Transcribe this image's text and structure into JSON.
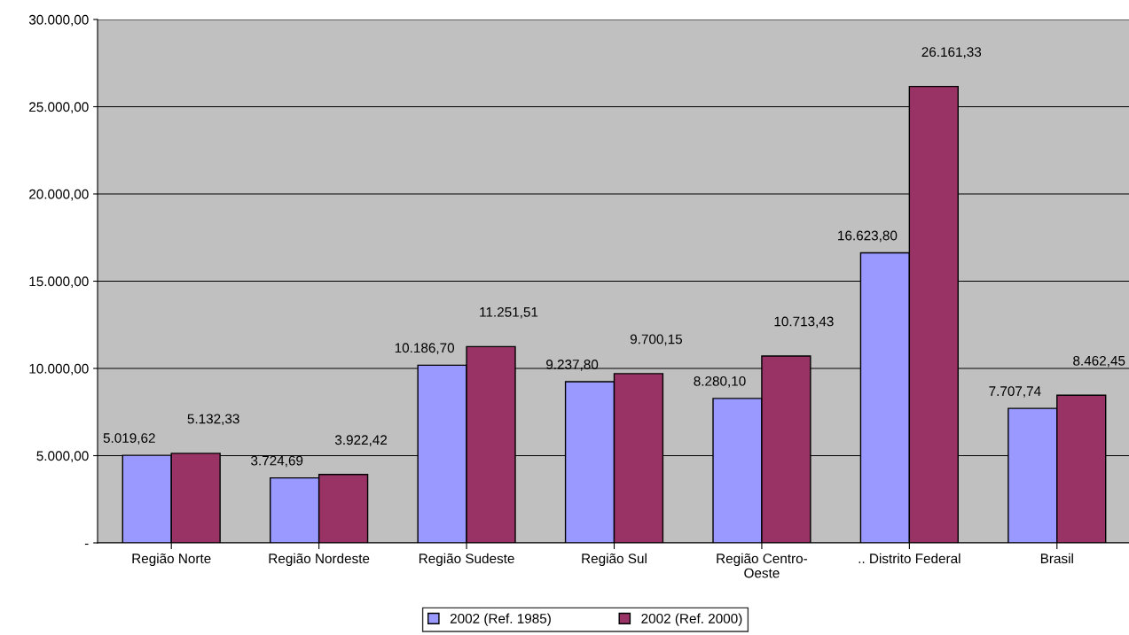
{
  "chart_data": {
    "type": "bar",
    "categories": [
      "Região Norte",
      "Região Nordeste",
      "Região Sudeste",
      "Região Sul",
      "Região Centro-\nOeste",
      ".. Distrito Federal",
      "Brasil"
    ],
    "series": [
      {
        "name": "2002 (Ref. 1985)",
        "color": "#9999ff",
        "values": [
          5019.62,
          3724.69,
          10186.7,
          9237.8,
          8280.1,
          16623.8,
          7707.74
        ],
        "value_labels": [
          "5.019,62",
          "3.724,69",
          "10.186,70",
          "9.237,80",
          "8.280,10",
          "16.623,80",
          "7.707,74"
        ]
      },
      {
        "name": "2002 (Ref. 2000)",
        "color": "#993366",
        "values": [
          5132.33,
          3922.42,
          11251.51,
          9700.15,
          10713.43,
          26161.33,
          8462.45
        ],
        "value_labels": [
          "5.132,33",
          "3.922,42",
          "11.251,51",
          "9.700,15",
          "10.713,43",
          "26.161,33",
          "8.462,45"
        ]
      }
    ],
    "ylim": [
      0,
      30000
    ],
    "yticks": [
      {
        "value": 0,
        "label": "-"
      },
      {
        "value": 5000,
        "label": "5.000,00"
      },
      {
        "value": 10000,
        "label": "10.000,00"
      },
      {
        "value": 15000,
        "label": "15.000,00"
      },
      {
        "value": 20000,
        "label": "20.000,00"
      },
      {
        "value": 25000,
        "label": "25.000,00"
      },
      {
        "value": 30000,
        "label": "30.000,00"
      }
    ],
    "grid": "y",
    "legend": "bottom"
  }
}
